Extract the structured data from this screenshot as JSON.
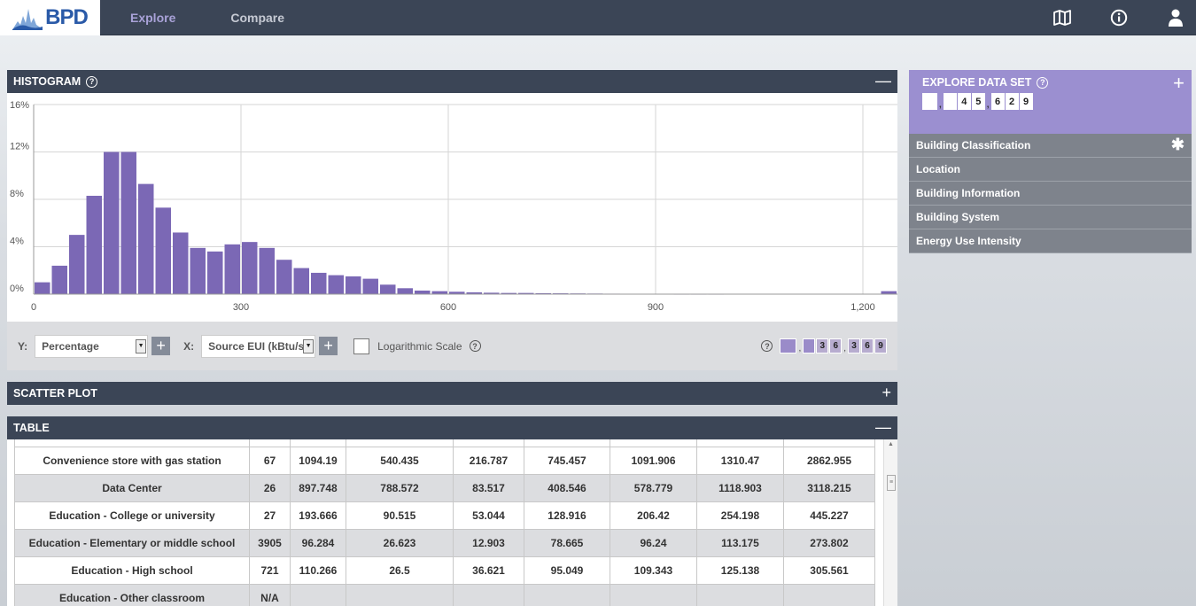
{
  "nav": {
    "logo": "BPD",
    "links": [
      "Explore",
      "Compare"
    ],
    "icons": [
      "map-icon",
      "info-icon",
      "user-icon"
    ]
  },
  "histogram": {
    "title": "HISTOGRAM",
    "toggle": "—",
    "controls": {
      "y_label": "Y:",
      "y_value": "Percentage",
      "x_label": "X:",
      "x_value": "Source EUI (kBtu/sf)",
      "log_label": "Logarithmic Scale",
      "count": [
        "",
        "",
        "3",
        "6",
        "3",
        "6",
        "9"
      ]
    }
  },
  "chart_data": {
    "type": "bar",
    "xlabel": "",
    "ylabel": "",
    "xlim": [
      0,
      1250
    ],
    "ylim": [
      0,
      16
    ],
    "x_ticks": [
      "0",
      "300",
      "600",
      "900",
      "1,200"
    ],
    "x_tick_values": [
      0,
      300,
      600,
      900,
      1200
    ],
    "y_ticks": [
      "0%",
      "4%",
      "8%",
      "12%",
      "16%"
    ],
    "y_tick_values": [
      0,
      4,
      8,
      12,
      16
    ],
    "bin_width": 25,
    "bin_starts": [
      0,
      25,
      50,
      75,
      100,
      125,
      150,
      175,
      200,
      225,
      250,
      275,
      300,
      325,
      350,
      375,
      400,
      425,
      450,
      475,
      500,
      525,
      550,
      575,
      600,
      625,
      650,
      675,
      700,
      725,
      750,
      775,
      800,
      825,
      850,
      875,
      900,
      925,
      950,
      975,
      1225
    ],
    "values": [
      1.0,
      2.4,
      5.0,
      8.3,
      12.0,
      12.0,
      9.3,
      7.3,
      5.2,
      3.9,
      3.6,
      4.2,
      4.4,
      3.9,
      2.9,
      2.2,
      1.8,
      1.6,
      1.5,
      1.3,
      0.8,
      0.5,
      0.3,
      0.25,
      0.2,
      0.15,
      0.12,
      0.1,
      0.1,
      0.08,
      0.07,
      0.06,
      0.05,
      0.04,
      0.03,
      0.03,
      0.03,
      0.02,
      0.02,
      0.02,
      0.25
    ],
    "bar_color": "#7b68b5",
    "grid": true
  },
  "scatter": {
    "title": "SCATTER PLOT",
    "toggle": "+"
  },
  "table": {
    "title": "TABLE",
    "toggle": "—",
    "rows": [
      [
        "Convenience store with gas station",
        "67",
        "1094.19",
        "540.435",
        "216.787",
        "745.457",
        "1091.906",
        "1310.47",
        "2862.955"
      ],
      [
        "Data Center",
        "26",
        "897.748",
        "788.572",
        "83.517",
        "408.546",
        "578.779",
        "1118.903",
        "3118.215"
      ],
      [
        "Education - College or university",
        "27",
        "193.666",
        "90.515",
        "53.044",
        "128.916",
        "206.42",
        "254.198",
        "445.227"
      ],
      [
        "Education - Elementary or middle school",
        "3905",
        "96.284",
        "26.623",
        "12.903",
        "78.665",
        "96.24",
        "113.175",
        "273.802"
      ],
      [
        "Education - High school",
        "721",
        "110.266",
        "26.5",
        "36.621",
        "95.049",
        "109.343",
        "125.138",
        "305.561"
      ],
      [
        "Education - Other classroom",
        "N/A",
        "",
        "",
        "",
        "",
        "",
        "",
        ""
      ]
    ]
  },
  "explore": {
    "title": "EXPLORE DATA SET",
    "toggle": "+",
    "count": [
      "",
      "",
      "4",
      "5",
      "6",
      "2",
      "9"
    ],
    "menu": [
      "Building Classification",
      "Location",
      "Building Information",
      "Building System",
      "Energy Use Intensity"
    ],
    "menu_first_icon": "asterisk-icon"
  }
}
